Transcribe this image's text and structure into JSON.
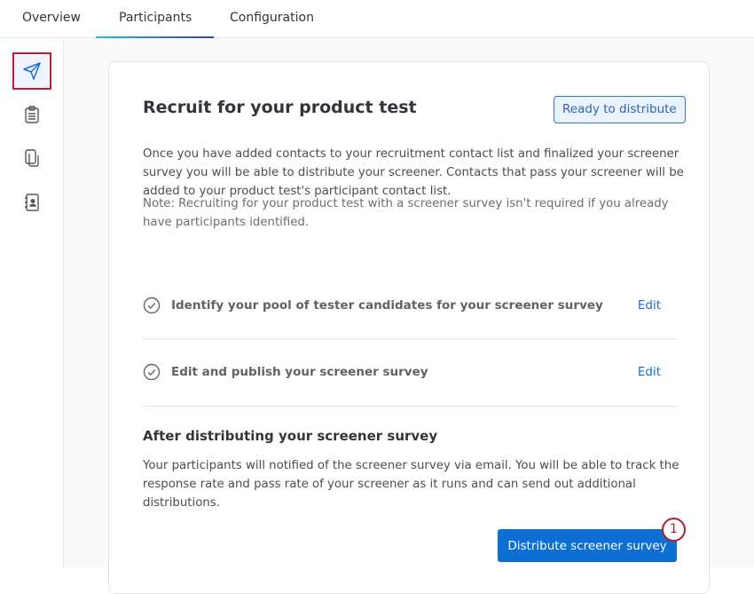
{
  "tabs": [
    {
      "label": "Overview"
    },
    {
      "label": "Participants",
      "active": true
    },
    {
      "label": "Configuration"
    }
  ],
  "sidebar": {
    "items": [
      {
        "icon": "paper-plane-icon",
        "selected": true
      },
      {
        "icon": "clipboard-icon"
      },
      {
        "icon": "copy-pages-icon"
      },
      {
        "icon": "contact-book-icon"
      }
    ]
  },
  "card": {
    "title": "Recruit for your product test",
    "status": "Ready to distribute",
    "description": "Once you have added contacts to your recruitment contact list and finalized your screener survey you will be able to distribute your screener. Contacts that pass your screener will be added to your product test's participant contact list.",
    "note": "Note: Recruiting for your product test with a screener survey isn't required if you already have participants identified.",
    "steps": [
      {
        "label": "Identify your pool of tester candidates for your screener survey",
        "action": "Edit"
      },
      {
        "label": "Edit and publish your screener survey",
        "action": "Edit"
      }
    ],
    "after_title": "After distributing your screener survey",
    "after_text": "Your participants will notified of the screener survey via email. You will be able to track the response rate and pass rate of your screener as it runs and can send out additional distributions.",
    "button": "Distribute screener survey"
  },
  "annotation": {
    "marker": "1",
    "color": "#b01c2b"
  },
  "colors": {
    "accent": "#0b6fd3"
  }
}
